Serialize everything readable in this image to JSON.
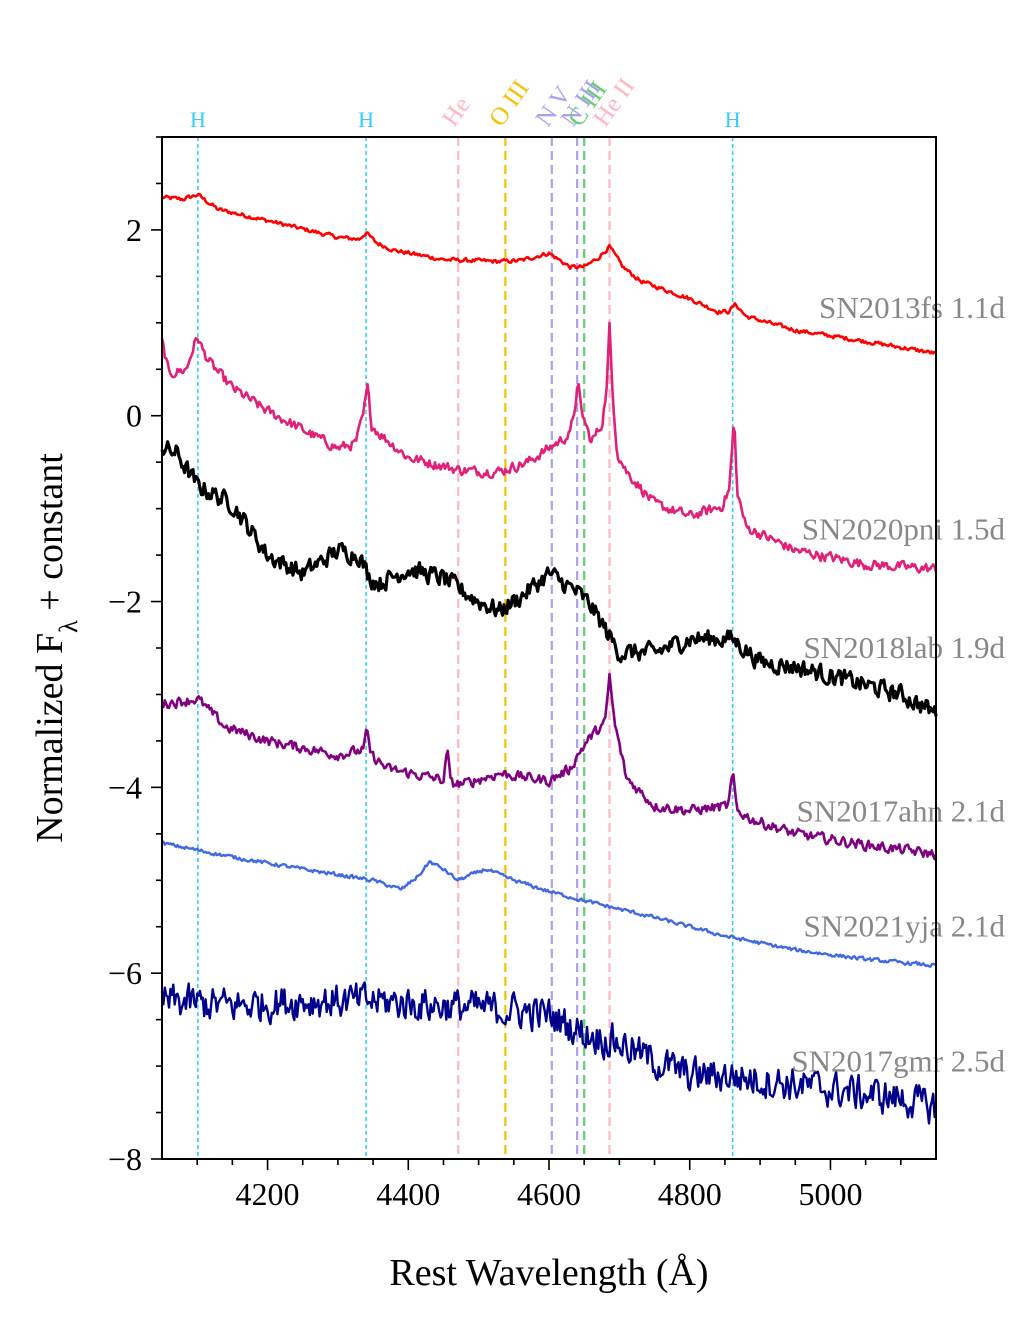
{
  "chart_data": {
    "type": "line",
    "xlabel": "Rest Wavelength (Å)",
    "ylabel": "Normalized F_λ + constant",
    "xlim": [
      4050,
      5150
    ],
    "ylim": [
      -8,
      3
    ],
    "xticks": [
      4200,
      4400,
      4600,
      4800,
      5000
    ],
    "xtick_labels": [
      "4200",
      "4400",
      "4600",
      "4800",
      "5000"
    ],
    "yticks": [
      -8,
      -6,
      -4,
      -2,
      0,
      2
    ],
    "ytick_labels": [
      "−8",
      "−6",
      "−4",
      "−2",
      "0",
      "2"
    ],
    "grid": false,
    "legend": "none",
    "lines": [
      {
        "label": "H",
        "x": 4101,
        "color": "#33ccff",
        "style": "dotted",
        "rotated": false
      },
      {
        "label": "H",
        "x": 4340,
        "color": "#33ccff",
        "style": "dotted",
        "rotated": false
      },
      {
        "label": "He",
        "x": 4471,
        "color": "#ffb6c1",
        "style": "dashed",
        "rotated": true
      },
      {
        "label": "O III",
        "x": 4538,
        "color": "#f5c000",
        "style": "dashed",
        "rotated": true
      },
      {
        "label": "N V",
        "x": 4604,
        "color": "#aaa0f0",
        "style": "dashed",
        "rotated": true
      },
      {
        "label": "N III",
        "x": 4640,
        "color": "#aaa0f0",
        "style": "dashed",
        "rotated": true
      },
      {
        "label": "C III",
        "x": 4650,
        "color": "#66cc77",
        "style": "dashed",
        "rotated": true
      },
      {
        "label": "He II",
        "x": 4686,
        "color": "#ffb6c1",
        "style": "dashed",
        "rotated": true
      },
      {
        "label": "H",
        "x": 4861,
        "color": "#33ccff",
        "style": "dotted",
        "rotated": false
      }
    ],
    "series": [
      {
        "name": "SN2013fs",
        "epoch": "1.1d",
        "color": "#ff0000",
        "noise": 0.02,
        "width": 2.6,
        "x": [
          4050,
          4080,
          4101,
          4115,
          4130,
          4200,
          4300,
          4330,
          4340,
          4355,
          4380,
          4450,
          4530,
          4560,
          4600,
          4630,
          4650,
          4670,
          4686,
          4705,
          4730,
          4800,
          4840,
          4855,
          4865,
          4880,
          4950,
          5050,
          5150
        ],
        "y": [
          2.35,
          2.33,
          2.38,
          2.3,
          2.22,
          2.1,
          1.92,
          1.9,
          1.97,
          1.86,
          1.78,
          1.68,
          1.66,
          1.67,
          1.75,
          1.6,
          1.6,
          1.7,
          1.82,
          1.6,
          1.45,
          1.26,
          1.12,
          1.12,
          1.2,
          1.07,
          0.92,
          0.8,
          0.67
        ]
      },
      {
        "name": "SN2020pni",
        "epoch": "1.5d",
        "color": "#e0217a",
        "noise": 0.05,
        "width": 2.6,
        "x": [
          4050,
          4060,
          4085,
          4095,
          4101,
          4108,
          4120,
          4150,
          4200,
          4250,
          4300,
          4325,
          4336,
          4342,
          4348,
          4360,
          4400,
          4470,
          4500,
          4530,
          4570,
          4610,
          4630,
          4637,
          4641,
          4646,
          4660,
          4675,
          4682,
          4686,
          4690,
          4697,
          4710,
          4750,
          4800,
          4845,
          4856,
          4860,
          4863,
          4867,
          4880,
          4950,
          5050,
          5150
        ],
        "y": [
          0.8,
          0.45,
          0.5,
          0.75,
          0.85,
          0.7,
          0.55,
          0.3,
          0.05,
          -0.15,
          -0.35,
          -0.3,
          0.0,
          0.3,
          -0.1,
          -0.2,
          -0.45,
          -0.58,
          -0.6,
          -0.6,
          -0.5,
          -0.3,
          -0.2,
          0.1,
          0.35,
          0.05,
          -0.28,
          -0.1,
          0.3,
          0.95,
          0.3,
          -0.4,
          -0.6,
          -0.95,
          -1.08,
          -0.98,
          -0.8,
          -0.4,
          0.0,
          -0.8,
          -1.2,
          -1.45,
          -1.6,
          -1.65
        ]
      },
      {
        "name": "SN2018lab",
        "epoch": "1.9d",
        "color": "#000000",
        "noise": 0.09,
        "width": 3.2,
        "x": [
          4050,
          4070,
          4100,
          4150,
          4200,
          4250,
          4300,
          4330,
          4345,
          4360,
          4400,
          4450,
          4500,
          4530,
          4560,
          4600,
          4640,
          4660,
          4700,
          4750,
          4800,
          4860,
          4900,
          4950,
          5000,
          5050,
          5100,
          5150
        ],
        "y": [
          -0.35,
          -0.4,
          -0.75,
          -0.95,
          -1.5,
          -1.7,
          -1.45,
          -1.5,
          -1.75,
          -1.8,
          -1.65,
          -1.75,
          -2.0,
          -2.1,
          -1.95,
          -1.7,
          -1.9,
          -2.05,
          -2.55,
          -2.55,
          -2.4,
          -2.4,
          -2.65,
          -2.7,
          -2.8,
          -2.9,
          -3.0,
          -3.2
        ]
      },
      {
        "name": "SN2017ahn",
        "epoch": "2.1d",
        "color": "#800080",
        "noise": 0.05,
        "width": 2.6,
        "x": [
          4050,
          4101,
          4140,
          4200,
          4300,
          4336,
          4341,
          4347,
          4370,
          4450,
          4456,
          4460,
          4464,
          4480,
          4530,
          4600,
          4630,
          4645,
          4660,
          4680,
          4686,
          4693,
          4710,
          4750,
          4800,
          4855,
          4861,
          4867,
          4890,
          4950,
          5050,
          5150
        ],
        "y": [
          -3.1,
          -3.05,
          -3.35,
          -3.5,
          -3.65,
          -3.6,
          -3.4,
          -3.65,
          -3.8,
          -3.92,
          -3.6,
          -3.95,
          -3.96,
          -3.96,
          -3.85,
          -3.93,
          -3.8,
          -3.6,
          -3.45,
          -3.3,
          -2.8,
          -3.3,
          -3.9,
          -4.2,
          -4.25,
          -4.2,
          -3.85,
          -4.25,
          -4.35,
          -4.5,
          -4.62,
          -4.72
        ]
      },
      {
        "name": "SN2021yja",
        "epoch": "2.1d",
        "color": "#4169e1",
        "noise": 0.018,
        "width": 2.4,
        "x": [
          4050,
          4150,
          4250,
          4350,
          4390,
          4415,
          4430,
          4450,
          4470,
          4510,
          4550,
          4600,
          4650,
          4750,
          4850,
          4950,
          5050,
          5150
        ],
        "y": [
          -4.6,
          -4.75,
          -4.88,
          -5.0,
          -5.1,
          -4.95,
          -4.8,
          -4.88,
          -5.0,
          -4.88,
          -5.0,
          -5.12,
          -5.22,
          -5.4,
          -5.6,
          -5.75,
          -5.85,
          -5.92
        ]
      },
      {
        "name": "SN2017gmr",
        "epoch": "2.5d",
        "color": "#00008b",
        "noise": 0.17,
        "width": 2.4,
        "x": [
          4050,
          4150,
          4250,
          4350,
          4450,
          4550,
          4600,
          4650,
          4700,
          4750,
          4800,
          4850,
          4900,
          5000,
          5100,
          5150
        ],
        "y": [
          -6.3,
          -6.35,
          -6.3,
          -6.3,
          -6.35,
          -6.4,
          -6.45,
          -6.65,
          -6.75,
          -6.95,
          -7.1,
          -7.1,
          -7.15,
          -7.25,
          -7.35,
          -7.45
        ]
      }
    ]
  }
}
